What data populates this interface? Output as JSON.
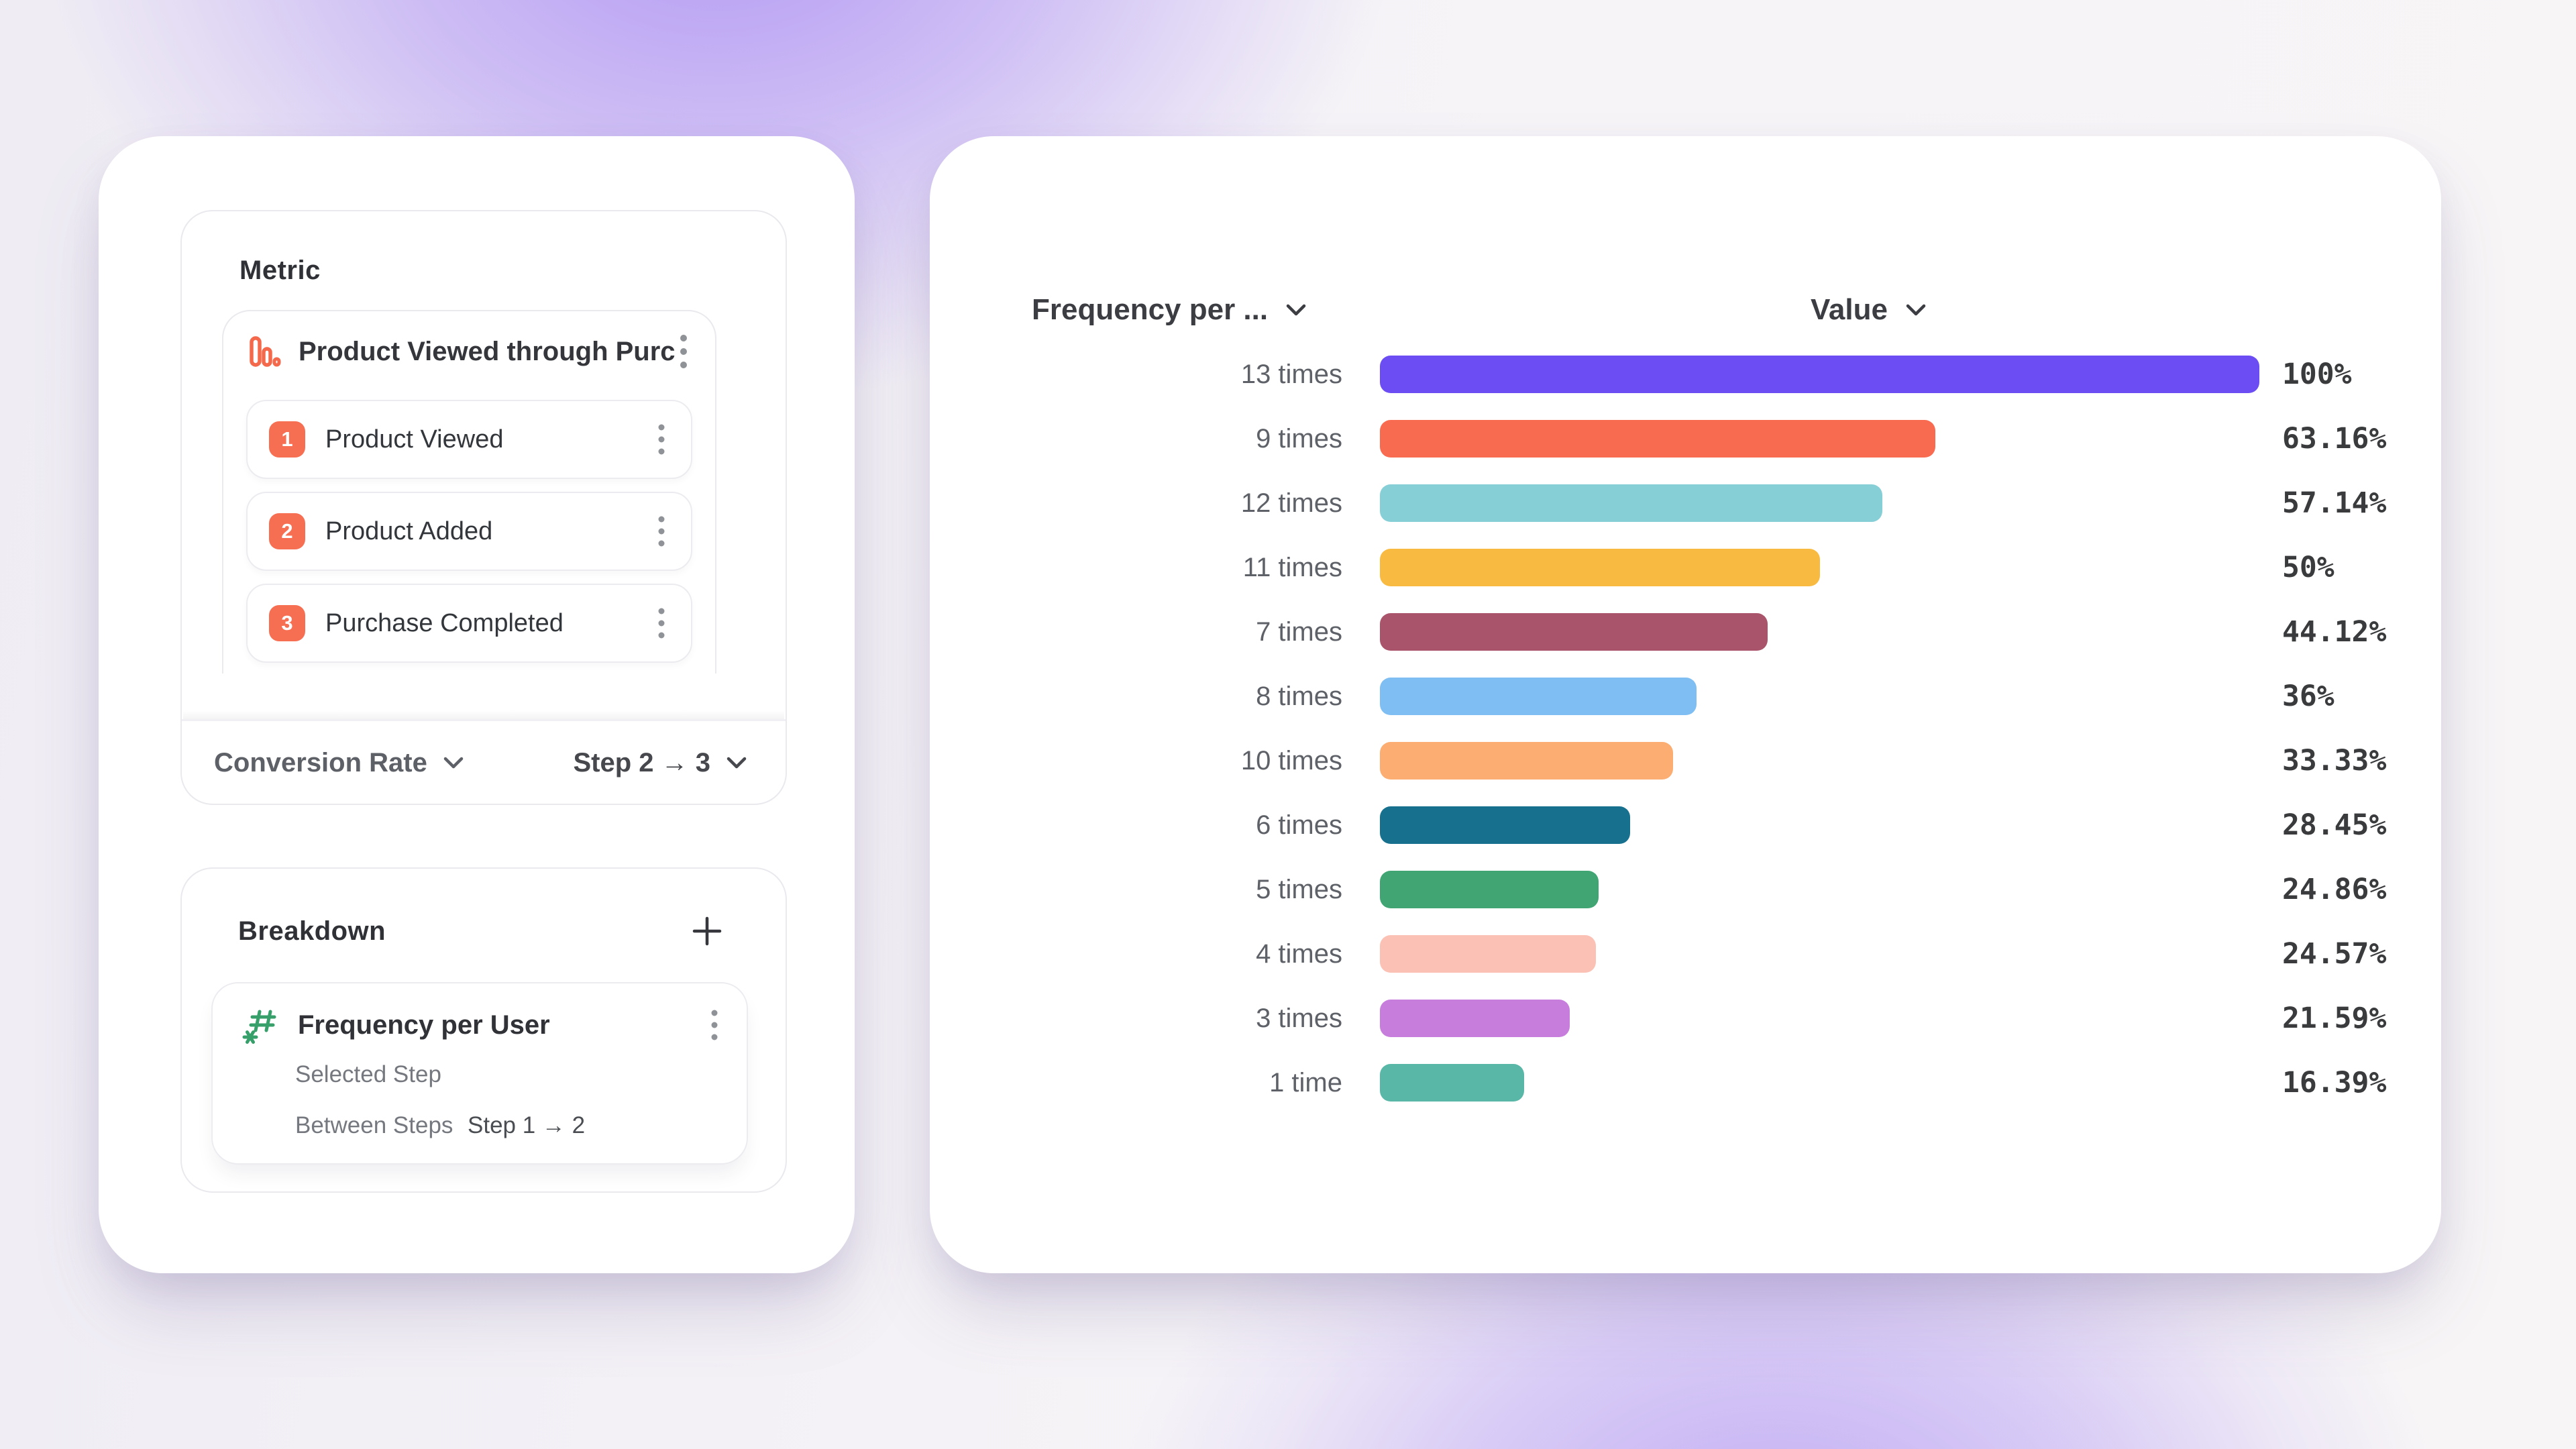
{
  "left_panel": {
    "metric": {
      "title": "Metric",
      "funnel": {
        "icon": "funnel-chart-icon",
        "name": "Product Viewed through Purch...",
        "steps": [
          {
            "index": "1",
            "label": "Product Viewed"
          },
          {
            "index": "2",
            "label": "Product Added"
          },
          {
            "index": "3",
            "label": "Purchase Completed"
          }
        ]
      },
      "footer": {
        "measure_label": "Conversion Rate",
        "step_range_label": "Step 2 → 3"
      }
    },
    "breakdown": {
      "title": "Breakdown",
      "add_icon": "plus-icon",
      "item": {
        "icon": "hash-sparkle-icon",
        "name": "Frequency per User",
        "properties": [
          {
            "label": "Selected Step",
            "value": ""
          },
          {
            "label": "Between Steps",
            "value": "Step 1 → 2"
          }
        ]
      }
    }
  },
  "chart_data": {
    "type": "bar",
    "orientation": "horizontal",
    "title": "",
    "column_headers": {
      "category": "Frequency per ...",
      "value": "Value"
    },
    "categories": [
      "13 times",
      "9 times",
      "12 times",
      "11 times",
      "7 times",
      "8 times",
      "10 times",
      "6 times",
      "5 times",
      "4 times",
      "3 times",
      "1 time"
    ],
    "values": [
      100,
      63.16,
      57.14,
      50,
      44.12,
      36,
      33.33,
      28.45,
      24.86,
      24.57,
      21.59,
      16.39
    ],
    "value_labels": [
      "100%",
      "63.16%",
      "57.14%",
      "50%",
      "44.12%",
      "36%",
      "33.33%",
      "28.45%",
      "24.86%",
      "24.57%",
      "21.59%",
      "16.39%"
    ],
    "bar_colors": [
      "#6B4DF3",
      "#F96B50",
      "#87CFD7",
      "#F8BA40",
      "#A9546A",
      "#7EBEF2",
      "#FBAD72",
      "#17708E",
      "#41A573",
      "#FCC1B5",
      "#C77DDC",
      "#59B7A7"
    ],
    "xlim": [
      0,
      100
    ],
    "grid": false,
    "legend": false
  },
  "colors": {
    "accent_orange": "#F76F53",
    "accent_green": "#37A06A",
    "card_border": "#E9E9EE",
    "text_primary": "#2F3136",
    "text_secondary": "#5E6268",
    "text_muted": "#75787E",
    "kebab_gray": "#8F9297"
  },
  "icons": [
    "funnel-chart-icon",
    "hash-sparkle-icon",
    "kebab-menu-icon",
    "plus-icon",
    "chevron-down-icon"
  ]
}
